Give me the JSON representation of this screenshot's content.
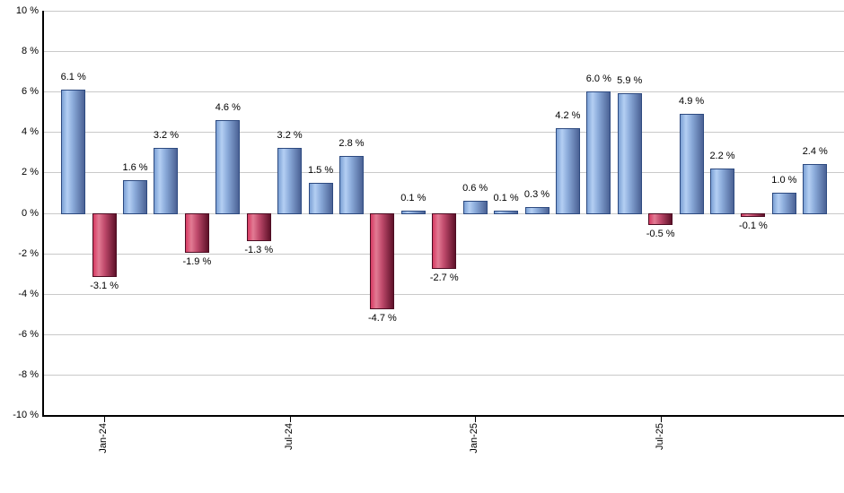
{
  "chart_data": {
    "type": "bar",
    "title": "",
    "values": [
      6.1,
      -3.1,
      1.6,
      3.2,
      -1.9,
      4.6,
      -1.3,
      3.2,
      1.5,
      2.8,
      -4.7,
      0.1,
      -2.7,
      0.6,
      0.1,
      0.3,
      4.2,
      6.0,
      5.9,
      -0.5,
      4.9,
      2.2,
      -0.1,
      1.0,
      2.4
    ],
    "value_labels": [
      "6.1 %",
      "-3.1 %",
      "1.6 %",
      "3.2 %",
      "-1.9 %",
      "4.6 %",
      "-1.3 %",
      "3.2 %",
      "1.5 %",
      "2.8 %",
      "-4.7 %",
      "0.1 %",
      "-2.7 %",
      "0.6 %",
      "0.1 %",
      "0.3 %",
      "4.2 %",
      "6.0 %",
      "5.9 %",
      "-0.5 %",
      "4.9 %",
      "2.2 %",
      "-0.1 %",
      "1.0 %",
      "2.4 %"
    ],
    "x_ticks": [
      {
        "index": 1,
        "label": "Jan-24"
      },
      {
        "index": 7,
        "label": "Jul-24"
      },
      {
        "index": 13,
        "label": "Jan-25"
      },
      {
        "index": 19,
        "label": "Jul-25"
      }
    ],
    "y_ticks": [
      "10 %",
      "8 %",
      "6 %",
      "4 %",
      "2 %",
      "0 %",
      "-2 %",
      "-4 %",
      "-6 %",
      "-8 %",
      "-10 %"
    ],
    "ylim": [
      -10,
      10
    ],
    "grid": true,
    "legend_position": "none",
    "colors": {
      "positive_bar": "#7ca1d5",
      "positive_highlight": "#b4cff3",
      "positive_mid": "#8cacdb",
      "positive_dark": "#4b6295",
      "positive_border": "#2d4a80",
      "negative_bar": "#d63a62",
      "negative_highlight": "#e27b94",
      "negative_mid": "#c04a6c",
      "negative_dark": "#5e1129",
      "negative_border": "#4d0c22",
      "gridline": "#c9c9c9",
      "axis": "#000000",
      "text": "#000000"
    }
  }
}
